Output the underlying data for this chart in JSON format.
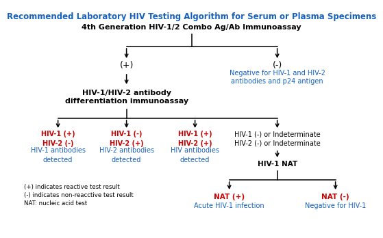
{
  "title": "Recommended Laboratory HIV Testing Algorithm for Serum or Plasma Specimens",
  "title_color": "#1560bd",
  "title_fontsize": 8.5,
  "bg_color": "#ffffff",
  "box1_text": "4th Generation HIV-1/2 Combo Ag/Ab Immunoassay",
  "plus_label": "(+)",
  "minus_label": "(-)",
  "neg_text": "Negative for HIV-1 and HIV-2\nantibodies and p24 antigen",
  "neg_color": "#1560bd",
  "box2_text": "HIV-1/HIV-2 antibody\ndifferentiation immunoassay",
  "col1_red": "HIV-1 (+)\nHIV-2 (-)",
  "col1_blue": "HIV-1 antibodies\ndetected",
  "col2_red": "HIV-1 (-)\nHIV-2 (+)",
  "col2_blue": "HIV-2 antibodies\ndetected",
  "col3_red": "HIV-1 (+)\nHIV-2 (+)",
  "col3_blue": "HIV antibodies\ndetected",
  "col4_black": "HIV-1 (-) or Indeterminate\nHIV-2 (-) or Indeterminate",
  "nat_box": "HIV-1 NAT",
  "nat_plus_red": "NAT (+)",
  "nat_plus_blue": "Acute HIV-1 infection",
  "nat_minus_red": "NAT (-)",
  "nat_minus_blue": "Negative for HIV-1",
  "footnote1": "(+) indicates reactive test result",
  "footnote2": "(-) indicates non-reacctive test result",
  "footnote3": "NAT: nucleic acid test",
  "red_color": "#cc0000",
  "blue_color": "#1560bd",
  "black_color": "#000000"
}
